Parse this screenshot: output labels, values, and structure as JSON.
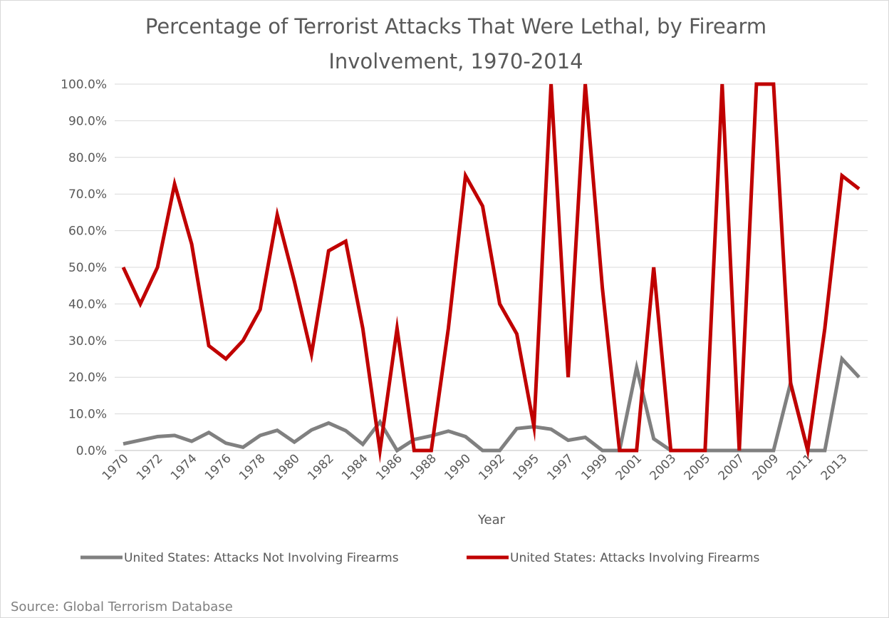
{
  "chart_data": {
    "type": "line",
    "title_lines": [
      "Percentage of Terrorist Attacks That Were Lethal, by Firearm",
      "Involvement, 1970-2014"
    ],
    "xlabel": "Year",
    "ylabel": "",
    "ylim": [
      0,
      100
    ],
    "y_ticks": [
      "0.0%",
      "10.0%",
      "20.0%",
      "30.0%",
      "40.0%",
      "50.0%",
      "60.0%",
      "70.0%",
      "80.0%",
      "90.0%",
      "100.0%"
    ],
    "x_tick_labels": [
      "1970",
      "1972",
      "1974",
      "1976",
      "1978",
      "1980",
      "1982",
      "1984",
      "1986",
      "1988",
      "1990",
      "1992",
      "1995",
      "1997",
      "1999",
      "2001",
      "2003",
      "2005",
      "2007",
      "2009",
      "2011",
      "2013"
    ],
    "categories": [
      "1970",
      "1971",
      "1972",
      "1973",
      "1974",
      "1975",
      "1976",
      "1977",
      "1978",
      "1979",
      "1980",
      "1981",
      "1982",
      "1983",
      "1984",
      "1985",
      "1986",
      "1987",
      "1988",
      "1989",
      "1990",
      "1991",
      "1992",
      "1994",
      "1995",
      "1996",
      "1997",
      "1998",
      "1999",
      "2000",
      "2001",
      "2002",
      "2003",
      "2004",
      "2005",
      "2006",
      "2007",
      "2008",
      "2009",
      "2010",
      "2011",
      "2012",
      "2013",
      "2014"
    ],
    "series": [
      {
        "name": "United States: Attacks Not Involving Firearms",
        "color": "#808080",
        "values": [
          1.8,
          2.8,
          3.8,
          4.1,
          2.5,
          4.9,
          2.0,
          0.9,
          4.1,
          5.5,
          2.3,
          5.6,
          7.5,
          5.4,
          1.7,
          7.8,
          0.0,
          3.0,
          4.0,
          5.3,
          3.8,
          0.0,
          0.0,
          6.0,
          6.5,
          5.8,
          2.8,
          3.6,
          0.0,
          0.0,
          22.6,
          3.2,
          0.0,
          0.0,
          0.0,
          0.0,
          0.0,
          0.0,
          0.0,
          18.5,
          0.0,
          0.0,
          25.0,
          20.0
        ]
      },
      {
        "name": "United States: Attacks Involving Firearms",
        "color": "#c00000",
        "values": [
          50.0,
          40.0,
          50.0,
          72.7,
          56.3,
          28.6,
          25.0,
          30.0,
          38.5,
          64.3,
          46.2,
          26.3,
          54.5,
          57.1,
          33.3,
          0.0,
          33.3,
          0.0,
          0.0,
          33.3,
          75.0,
          66.7,
          40.0,
          31.8,
          6.5,
          100.0,
          20.0,
          100.0,
          44.4,
          0.0,
          0.0,
          50.0,
          0.0,
          0.0,
          0.0,
          100.0,
          0.0,
          100.0,
          100.0,
          18.2,
          0.0,
          33.3,
          75.0,
          71.4
        ]
      }
    ],
    "legend_position": "bottom",
    "gridlines": true
  },
  "source": "Source: Global Terrorism Database"
}
